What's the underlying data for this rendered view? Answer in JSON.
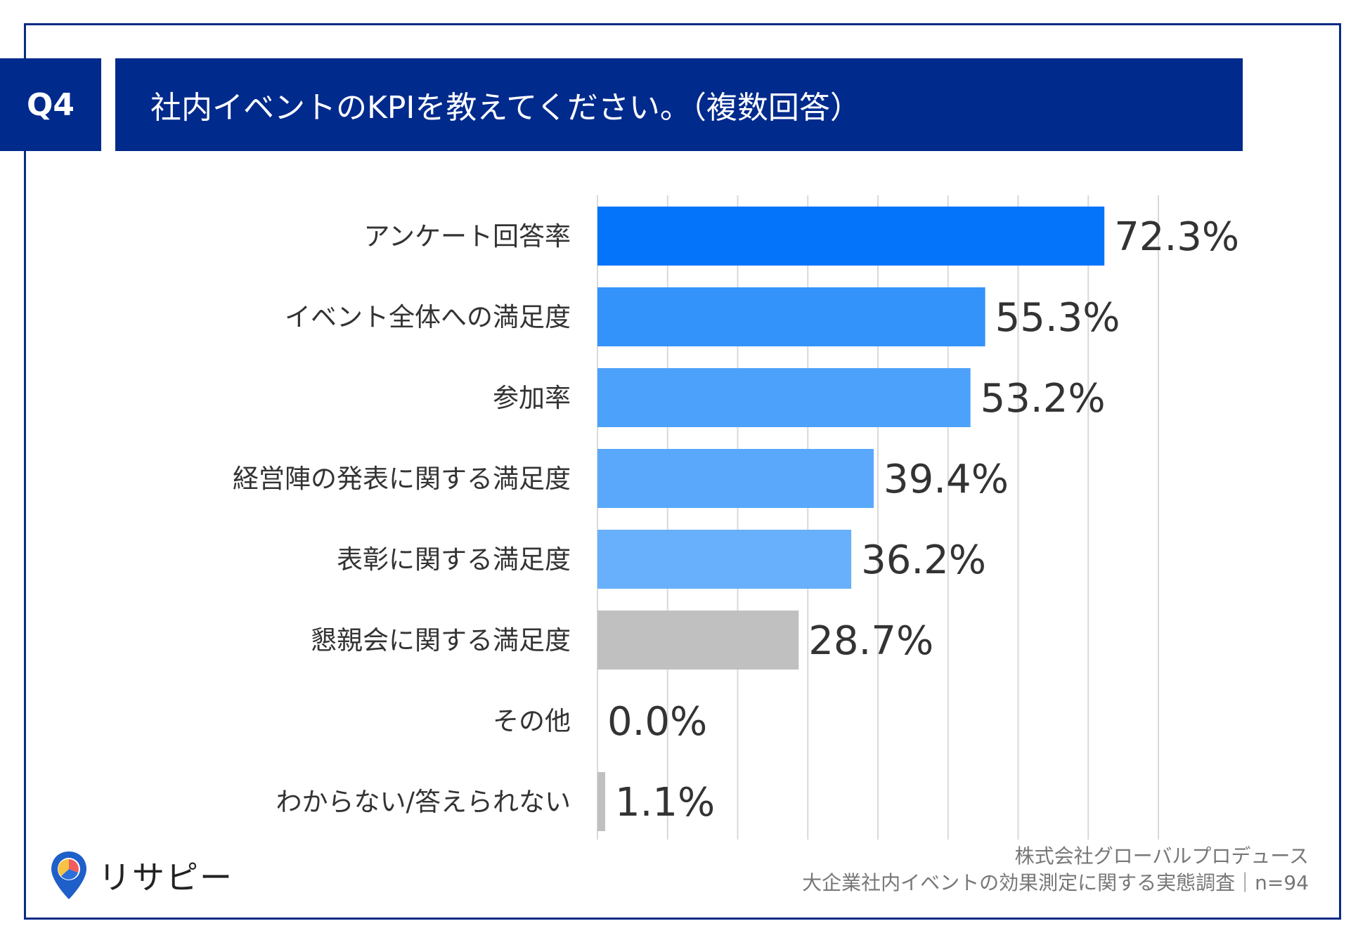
{
  "header": {
    "question_no": "Q4",
    "question": "社内イベントのKPIを教えてください。（複数回答）"
  },
  "chart_data": {
    "type": "bar",
    "orientation": "horizontal",
    "categories": [
      "アンケート回答率",
      "イベント全体への満足度",
      "参加率",
      "経営陣の発表に関する満足度",
      "表彰に関する満足度",
      "懇親会に関する満足度",
      "その他",
      "わからない/答えられない"
    ],
    "values": [
      72.3,
      55.3,
      53.2,
      39.4,
      36.2,
      28.7,
      0.0,
      1.1
    ],
    "value_labels": [
      "72.3%",
      "55.3%",
      "53.2%",
      "39.4%",
      "36.2%",
      "28.7%",
      "0.0%",
      "1.1%"
    ],
    "bar_colors": [
      "#0474fb",
      "#3393fb",
      "#4ca1fb",
      "#5aa8fb",
      "#68b0fb",
      "#c0c0c0",
      "#c0c0c0",
      "#c0c0c0"
    ],
    "xlim": [
      0,
      80
    ],
    "grid": true
  },
  "footer": {
    "company": "株式会社グローバルプロデュース",
    "survey": "大企業社内イベントの効果測定に関する実態調査｜n=94"
  },
  "logo": {
    "text": "リサピー",
    "icon": "pin-icon"
  }
}
